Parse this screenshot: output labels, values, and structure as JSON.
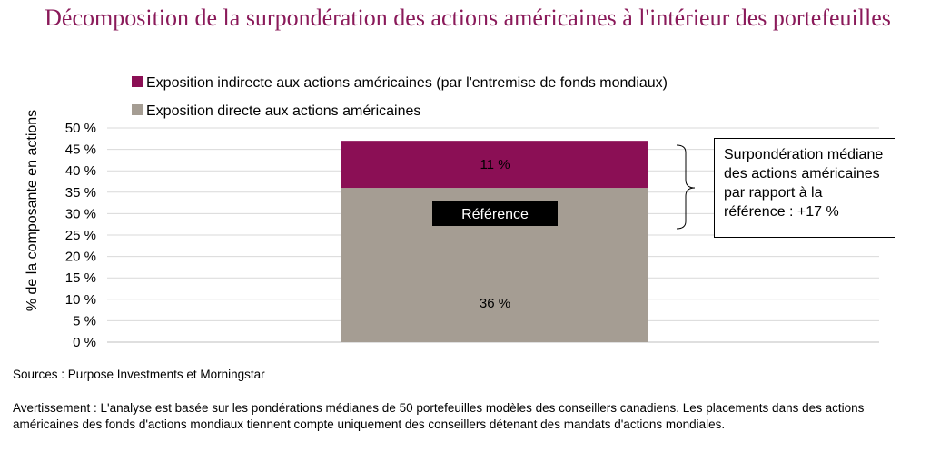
{
  "title": "Décomposition de la surpondération des actions américaines à l'intérieur des portefeuilles",
  "colors": {
    "indirect": "#8b0f55",
    "direct": "#a59d93",
    "title": "#8a1a5a"
  },
  "chart_data": {
    "type": "bar",
    "stacked": true,
    "categories": [
      ""
    ],
    "series": [
      {
        "name": "Exposition directe aux actions américaines",
        "values": [
          36
        ],
        "label": "36 %"
      },
      {
        "name": "Exposition indirecte aux actions américaines (par l'entremise de fonds mondiaux)",
        "values": [
          11
        ],
        "label": "11 %"
      }
    ],
    "ylabel": "% de la composante en actions",
    "ylim": [
      0,
      50
    ],
    "yticks": [
      "0 %",
      "5 %",
      "10 %",
      "15 %",
      "20 %",
      "25 %",
      "30 %",
      "35 %",
      "40 %",
      "45 %",
      "50 %"
    ],
    "grid": true,
    "legend": "top-left",
    "reference_label": "Référence",
    "callout": "Surpondération médiane des actions américaines par rapport à la référence : +17 %"
  },
  "sources": "Sources : Purpose Investments et Morningstar",
  "disclaimer": "Avertissement : L'analyse est basée sur les pondérations médianes de 50 portefeuilles modèles des conseillers canadiens. Les placements dans des actions américaines des fonds d'actions mondiaux tiennent compte uniquement des conseillers détenant des mandats d'actions mondiales."
}
